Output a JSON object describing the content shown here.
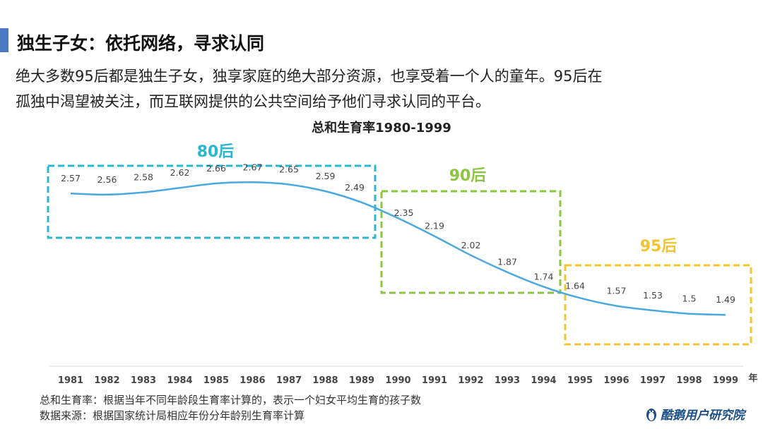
{
  "header": {
    "title": "独生子女：依托网络，寻求认同",
    "desc_line1": "绝大多数95后都是独生子女，独享家庭的绝大部分资源，也享受着一个人的童年。95后在",
    "desc_line2": "孤独中渴望被关注，而互联网提供的公共空间给予他们寻求认同的平台。"
  },
  "chart_data": {
    "type": "line",
    "title": "总和生育率1980-1999",
    "x_unit": "年",
    "categories": [
      "1981",
      "1982",
      "1983",
      "1984",
      "1985",
      "1986",
      "1987",
      "1988",
      "1989",
      "1990",
      "1991",
      "1992",
      "1993",
      "1994",
      "1995",
      "1996",
      "1997",
      "1998",
      "1999"
    ],
    "series": [
      {
        "values": [
          2.57,
          2.56,
          2.58,
          2.62,
          2.66,
          2.67,
          2.65,
          2.59,
          2.49,
          2.35,
          2.19,
          2.02,
          1.87,
          1.74,
          1.64,
          1.57,
          1.53,
          1.5,
          1.49
        ]
      }
    ],
    "data_labels": [
      "2.57",
      "2.56",
      "2.58",
      "2.62",
      "2.66",
      "2.67",
      "2.65",
      "2.59",
      "2.49",
      "2.35",
      "2.19",
      "2.02",
      "1.87",
      "1.74",
      "1.64",
      "1.57",
      "1.53",
      "1.5",
      "1.49"
    ],
    "annotations": [
      {
        "label": "80后",
        "color": "#29b6cf"
      },
      {
        "label": "90后",
        "color": "#8cc63f"
      },
      {
        "label": "95后",
        "color": "#f4c430"
      }
    ],
    "line_color": "#4aa8e0",
    "grid": false
  },
  "notes": {
    "line1": "总和生育率：根据当年不同年龄段生育率计算的，表示一个妇女平均生育的孩子数",
    "line2": "数据来源：根据国家统计局相应年份分年龄别生育率计算"
  },
  "brand": {
    "text": "酷鹅用户研究院",
    "icon": "penguin-icon"
  }
}
